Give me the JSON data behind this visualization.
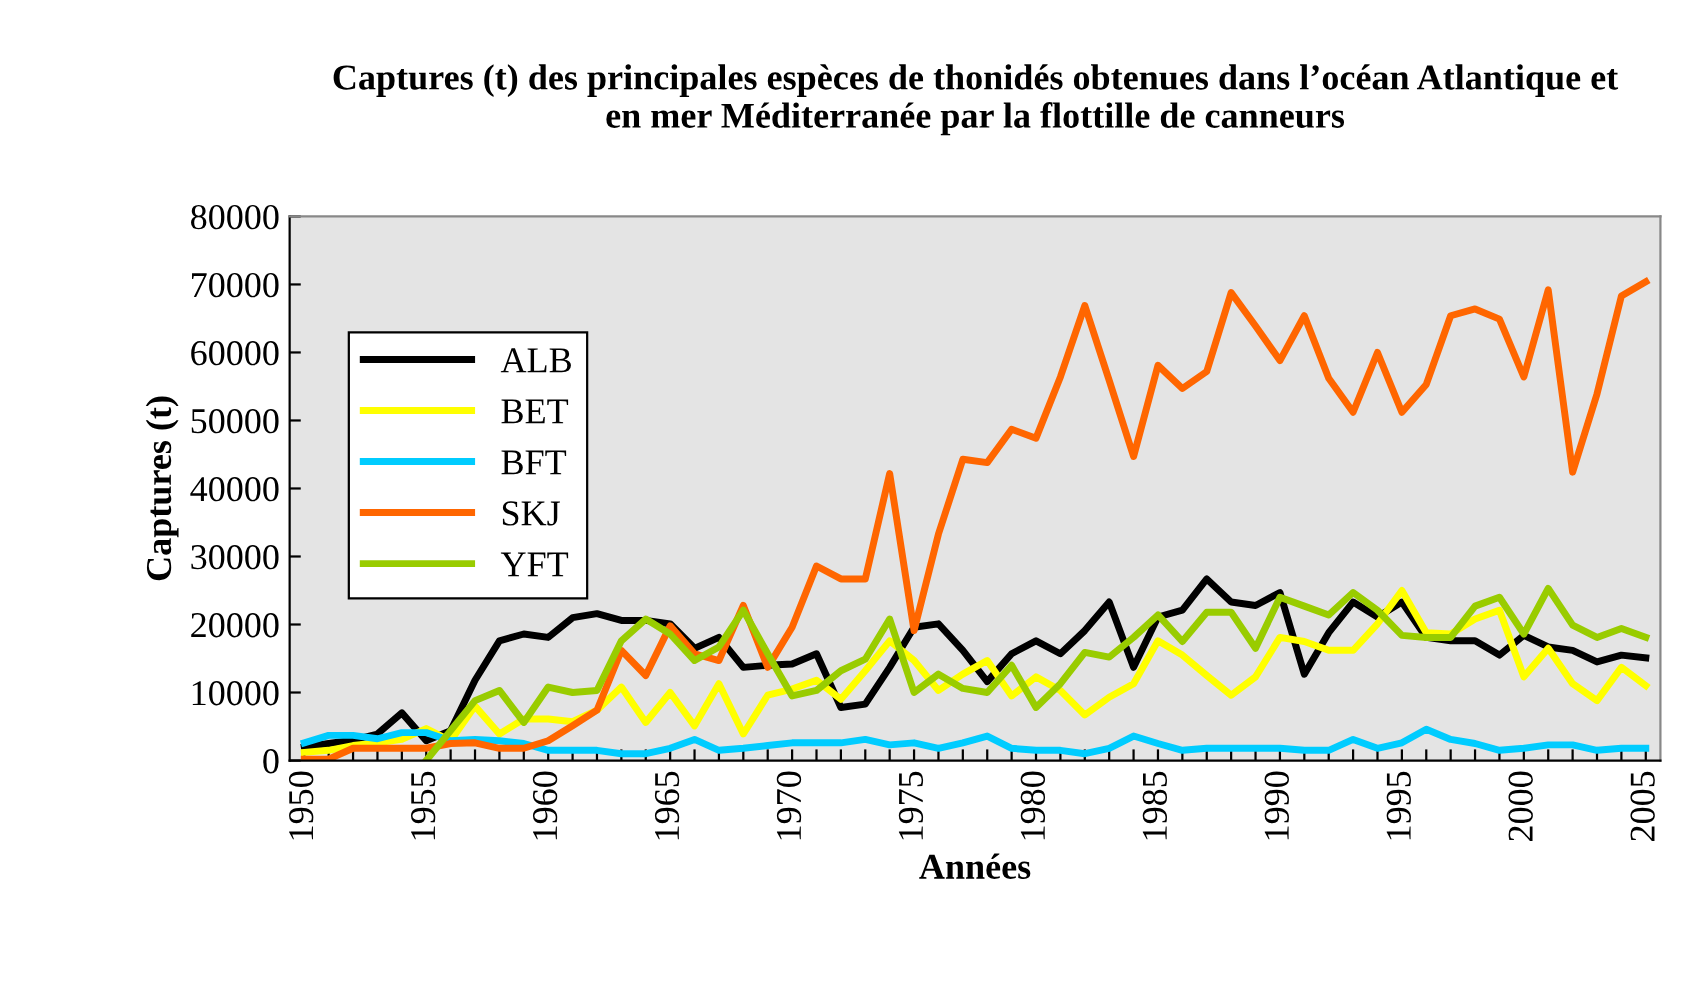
{
  "chart_data": {
    "type": "line",
    "title": "Captures (t) des principales espèces de thonidés obtenues dans l’océan Atlantique et\nen mer Méditerranée par la flottille de canneurs",
    "xlabel": "Années",
    "ylabel": "Captures (t)",
    "x": [
      1950,
      1951,
      1952,
      1953,
      1954,
      1955,
      1956,
      1957,
      1958,
      1959,
      1960,
      1961,
      1962,
      1963,
      1964,
      1965,
      1966,
      1967,
      1968,
      1969,
      1970,
      1971,
      1972,
      1973,
      1974,
      1975,
      1976,
      1977,
      1978,
      1979,
      1980,
      1981,
      1982,
      1983,
      1984,
      1985,
      1986,
      1987,
      1988,
      1989,
      1990,
      1991,
      1992,
      1993,
      1994,
      1995,
      1996,
      1997,
      1998,
      1999,
      2000,
      2001,
      2002,
      2003,
      2004,
      2005
    ],
    "series": [
      {
        "name": "ALB",
        "color": "#000000",
        "values": [
          2000,
          2500,
          3000,
          3900,
          7000,
          2900,
          4400,
          11800,
          17600,
          18600,
          18100,
          21000,
          21600,
          20600,
          20600,
          20100,
          16500,
          18100,
          13700,
          14000,
          14200,
          15700,
          7800,
          8300,
          13700,
          19600,
          20100,
          16200,
          11600,
          15700,
          17600,
          15700,
          19100,
          23300,
          13700,
          21100,
          22100,
          26700,
          23300,
          22800,
          24700,
          12700,
          18800,
          23300,
          21100,
          23300,
          18100,
          17600,
          17600,
          15500,
          18400,
          16700,
          16200,
          14500,
          15500,
          15100
        ]
      },
      {
        "name": "BET",
        "color": "#ffff00",
        "values": [
          1200,
          1500,
          2200,
          2600,
          3100,
          4700,
          2900,
          8000,
          3900,
          6100,
          6100,
          5700,
          7400,
          10800,
          5600,
          10000,
          5100,
          11300,
          3900,
          9600,
          10500,
          11800,
          9000,
          13200,
          17600,
          14700,
          10300,
          12700,
          14700,
          9500,
          12300,
          10300,
          6700,
          9300,
          11300,
          17600,
          15500,
          12500,
          9600,
          12300,
          18100,
          17500,
          16200,
          16200,
          20100,
          25000,
          18800,
          18600,
          20800,
          22100,
          12300,
          16500,
          11300,
          8800,
          13700,
          11000
        ]
      },
      {
        "name": "BFT",
        "color": "#00ccff",
        "values": [
          2600,
          3700,
          3700,
          3200,
          4100,
          4100,
          2900,
          3100,
          2900,
          2500,
          1500,
          1500,
          1500,
          1000,
          1000,
          1800,
          3100,
          1500,
          1800,
          2200,
          2600,
          2600,
          2600,
          3100,
          2300,
          2600,
          1800,
          2600,
          3600,
          1800,
          1500,
          1500,
          1000,
          1800,
          3600,
          2500,
          1500,
          1800,
          1800,
          1800,
          1800,
          1500,
          1500,
          3100,
          1800,
          2600,
          4600,
          3100,
          2500,
          1500,
          1800,
          2300,
          2300,
          1500,
          1800,
          1800
        ]
      },
      {
        "name": "SKJ",
        "color": "#ff6600",
        "values": [
          200,
          200,
          1800,
          1800,
          1800,
          1800,
          2500,
          2600,
          1800,
          1800,
          2900,
          5100,
          7400,
          16200,
          12500,
          19800,
          15700,
          14700,
          22800,
          13700,
          19600,
          28600,
          26700,
          26700,
          42200,
          19100,
          33300,
          44300,
          43800,
          48700,
          47400,
          56400,
          66900,
          55900,
          44700,
          58100,
          54700,
          57200,
          68800,
          63900,
          58800,
          65400,
          56200,
          51200,
          60000,
          51200,
          55300,
          65400,
          66400,
          64900,
          56400,
          69200,
          42400,
          53900,
          68300,
          70400
        ]
      },
      {
        "name": "YFT",
        "color": "#99cc00",
        "values": [
          null,
          null,
          null,
          null,
          null,
          0,
          4400,
          8800,
          10300,
          5600,
          10800,
          10000,
          10300,
          17600,
          20800,
          18600,
          14700,
          16700,
          22100,
          15700,
          9500,
          10300,
          13200,
          14900,
          20800,
          10000,
          12700,
          10600,
          10000,
          14000,
          7800,
          11300,
          15900,
          15200,
          18100,
          21400,
          17500,
          21800,
          21800,
          16500,
          24000,
          22700,
          21400,
          24700,
          22100,
          18400,
          18100,
          18100,
          22700,
          24000,
          18600,
          25300,
          19900,
          18100,
          19400,
          18100
        ]
      }
    ],
    "xlim": [
      1949.4,
      2005.6
    ],
    "xticks": [
      1950,
      {
        "value": 1951,
        "label": null
      },
      {
        "value": 1952,
        "label": null
      },
      {
        "value": 1953,
        "label": null
      },
      {
        "value": 1954,
        "label": null
      },
      1955,
      {
        "value": 1956,
        "label": null
      },
      {
        "value": 1957,
        "label": null
      },
      {
        "value": 1958,
        "label": null
      },
      {
        "value": 1959,
        "label": null
      },
      1960,
      {
        "value": 1961,
        "label": null
      },
      {
        "value": 1962,
        "label": null
      },
      {
        "value": 1963,
        "label": null
      },
      {
        "value": 1964,
        "label": null
      },
      1965,
      {
        "value": 1966,
        "label": null
      },
      {
        "value": 1967,
        "label": null
      },
      {
        "value": 1968,
        "label": null
      },
      {
        "value": 1969,
        "label": null
      },
      1970,
      {
        "value": 1971,
        "label": null
      },
      {
        "value": 1972,
        "label": null
      },
      {
        "value": 1973,
        "label": null
      },
      {
        "value": 1974,
        "label": null
      },
      1975,
      {
        "value": 1976,
        "label": null
      },
      {
        "value": 1977,
        "label": null
      },
      {
        "value": 1978,
        "label": null
      },
      {
        "value": 1979,
        "label": null
      },
      1980,
      {
        "value": 1981,
        "label": null
      },
      {
        "value": 1982,
        "label": null
      },
      {
        "value": 1983,
        "label": null
      },
      {
        "value": 1984,
        "label": null
      },
      1985,
      {
        "value": 1986,
        "label": null
      },
      {
        "value": 1987,
        "label": null
      },
      {
        "value": 1988,
        "label": null
      },
      {
        "value": 1989,
        "label": null
      },
      1990,
      {
        "value": 1991,
        "label": null
      },
      {
        "value": 1992,
        "label": null
      },
      {
        "value": 1993,
        "label": null
      },
      {
        "value": 1994,
        "label": null
      },
      1995,
      {
        "value": 1996,
        "label": null
      },
      {
        "value": 1997,
        "label": null
      },
      {
        "value": 1998,
        "label": null
      },
      {
        "value": 1999,
        "label": null
      },
      2000,
      {
        "value": 2001,
        "label": null
      },
      {
        "value": 2002,
        "label": null
      },
      {
        "value": 2003,
        "label": null
      },
      {
        "value": 2004,
        "label": null
      },
      2005
    ],
    "ylim": [
      0,
      80000
    ],
    "yticks": [
      0,
      10000,
      20000,
      30000,
      40000,
      50000,
      60000,
      70000,
      80000
    ],
    "grid": false,
    "legend": "top left",
    "marker": "none",
    "line_style": "solid"
  }
}
